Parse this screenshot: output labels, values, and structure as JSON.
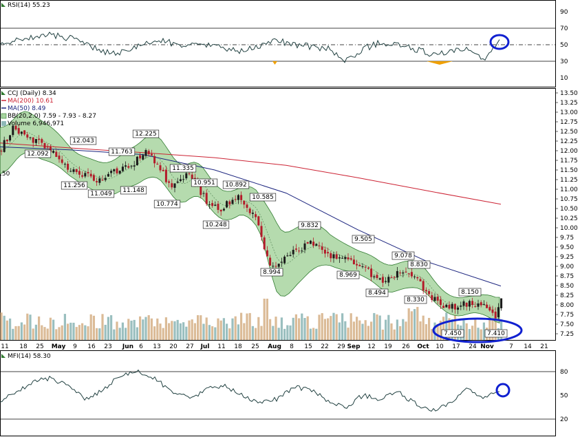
{
  "panels": {
    "rsi": {
      "label": "RSI(14) 55.23",
      "ticks": [
        90,
        70,
        50,
        30,
        10
      ],
      "levels": [
        70,
        50,
        30
      ]
    },
    "price": {
      "legend": {
        "title": "CCJ (Daily) 8.34",
        "ma200": "MA(200) 10.61",
        "ma50": "MA(50) 8.49",
        "bb": "BB(20,2.0) 7.59 - 7.93 - 8.27",
        "volume": "Volume 6,946,971"
      },
      "ticks": [
        "13.50",
        "13.25",
        "13.00",
        "12.75",
        "12.50",
        "12.25",
        "12.00",
        "11.75",
        "11.50",
        "11.25",
        "11.00",
        "10.75",
        "10.50",
        "10.25",
        "10.00",
        "9.75",
        "9.50",
        "9.25",
        "9.00",
        "8.75",
        "8.50",
        "8.25",
        "8.00",
        "7.75",
        "7.50",
        "7.25"
      ]
    },
    "mfi": {
      "label": "MFI(14) 58.30",
      "ticks": [
        80,
        50,
        20
      ],
      "levels": [
        80,
        20
      ]
    }
  },
  "x_axis": [
    {
      "t": "11",
      "b": false
    },
    {
      "t": "18",
      "b": false
    },
    {
      "t": "25",
      "b": false
    },
    {
      "t": "May",
      "b": true
    },
    {
      "t": "9",
      "b": false
    },
    {
      "t": "16",
      "b": false
    },
    {
      "t": "23",
      "b": false
    },
    {
      "t": "Jun",
      "b": true
    },
    {
      "t": "6",
      "b": false
    },
    {
      "t": "13",
      "b": false
    },
    {
      "t": "20",
      "b": false
    },
    {
      "t": "27",
      "b": false
    },
    {
      "t": "Jul",
      "b": true
    },
    {
      "t": "11",
      "b": false
    },
    {
      "t": "18",
      "b": false
    },
    {
      "t": "25",
      "b": false
    },
    {
      "t": "Aug",
      "b": true
    },
    {
      "t": "8",
      "b": false
    },
    {
      "t": "15",
      "b": false
    },
    {
      "t": "22",
      "b": false
    },
    {
      "t": "29",
      "b": false
    },
    {
      "t": "Sep",
      "b": true
    },
    {
      "t": "12",
      "b": false
    },
    {
      "t": "19",
      "b": false
    },
    {
      "t": "26",
      "b": false
    },
    {
      "t": "Oct",
      "b": true
    },
    {
      "t": "10",
      "b": false
    },
    {
      "t": "17",
      "b": false
    },
    {
      "t": "24",
      "b": false
    },
    {
      "t": "Nov",
      "b": true
    },
    {
      "t": "7",
      "b": false
    },
    {
      "t": "14",
      "b": false
    },
    {
      "t": "21",
      "b": false
    }
  ],
  "annotations": [
    "12.092",
    "11.256",
    "11.049",
    "12.043",
    "11.763",
    "11.148",
    "12.225",
    "10.774",
    "11.335",
    "10.951",
    "10.248",
    "10.892",
    "10.585",
    "8.994",
    "9.832",
    "8.969",
    "9.505",
    "8.494",
    "9.078",
    "8.830",
    "8.330",
    "8.150",
    "7.450",
    "7.410",
    "50"
  ],
  "chart_data": {
    "type": "line",
    "title": "CCJ (Daily) 8.34",
    "price_range": [
      7.15,
      13.55
    ],
    "series": [
      {
        "name": "MA(200) 10.61",
        "x": [
          "Apr 11",
          "May 2",
          "Jun 1",
          "Jul 1",
          "Aug 1",
          "Sep 1",
          "Oct 3",
          "Nov 3"
        ],
        "values": [
          12.2,
          12.07,
          11.95,
          11.82,
          11.62,
          11.3,
          10.95,
          10.61
        ]
      },
      {
        "name": "MA(50) 8.49",
        "x": [
          "Apr 11",
          "May 2",
          "Jun 1",
          "Jul 1",
          "Aug 1",
          "Sep 1",
          "Oct 3",
          "Nov 3"
        ],
        "values": [
          12.1,
          12.02,
          11.9,
          11.5,
          10.9,
          9.95,
          9.1,
          8.49
        ]
      },
      {
        "name": "RSI(14) 55.23",
        "values": [
          50,
          55,
          60,
          62,
          58,
          50,
          42,
          40,
          48,
          55,
          52,
          48,
          50,
          45,
          42,
          48,
          55,
          50,
          48,
          45,
          30,
          45,
          52,
          50,
          45,
          38,
          40,
          45,
          30,
          55
        ]
      },
      {
        "name": "MFI(14) 58.30",
        "values": [
          42,
          55,
          68,
          72,
          60,
          45,
          58,
          75,
          80,
          70,
          55,
          45,
          58,
          62,
          50,
          40,
          45,
          60,
          58,
          42,
          35,
          50,
          45,
          55,
          40,
          30,
          38,
          58,
          45,
          58
        ]
      }
    ],
    "annotations": [
      {
        "x": "Apr 18",
        "value": 12.092
      },
      {
        "x": "May 9",
        "value": 11.256
      },
      {
        "x": "May 16",
        "value": 11.049
      },
      {
        "x": "May 2",
        "value": 12.043
      },
      {
        "x": "May 23",
        "value": 11.763
      },
      {
        "x": "May 30",
        "value": 11.148
      },
      {
        "x": "Jun 6",
        "value": 12.225
      },
      {
        "x": "Jun 16",
        "value": 10.774
      },
      {
        "x": "Jun 20",
        "value": 11.335
      },
      {
        "x": "Jun 30",
        "value": 10.951
      },
      {
        "x": "Jul 5",
        "value": 10.248
      },
      {
        "x": "Jul 14",
        "value": 10.892
      },
      {
        "x": "Jul 25",
        "value": 10.585
      },
      {
        "x": "Aug 1",
        "value": 8.994
      },
      {
        "x": "Aug 17",
        "value": 9.832
      },
      {
        "x": "Aug 29",
        "value": 8.969
      },
      {
        "x": "Sep 8",
        "value": 9.505
      },
      {
        "x": "Sep 14",
        "value": 8.494
      },
      {
        "x": "Sep 21",
        "value": 9.078
      },
      {
        "x": "Sep 29",
        "value": 8.83
      },
      {
        "x": "Oct 3",
        "value": 8.33
      },
      {
        "x": "Oct 24",
        "value": 8.15
      },
      {
        "x": "Oct 17",
        "value": 7.45
      },
      {
        "x": "Nov 3",
        "value": 7.41
      }
    ]
  },
  "colors": {
    "bb_fill": "#a8d5a0",
    "bb_edge": "#2f7a2f",
    "ma200": "#cc2233",
    "ma50": "#1a237e",
    "up_candle": "#1a1a1a",
    "down_candle": "#b31b2a",
    "vol_up": "#8fb8b8",
    "vol_down": "#d7b48c",
    "highlight": "#1020d0",
    "rsi_line": "#1f3f3f",
    "rsi_over": "#f0a000"
  }
}
